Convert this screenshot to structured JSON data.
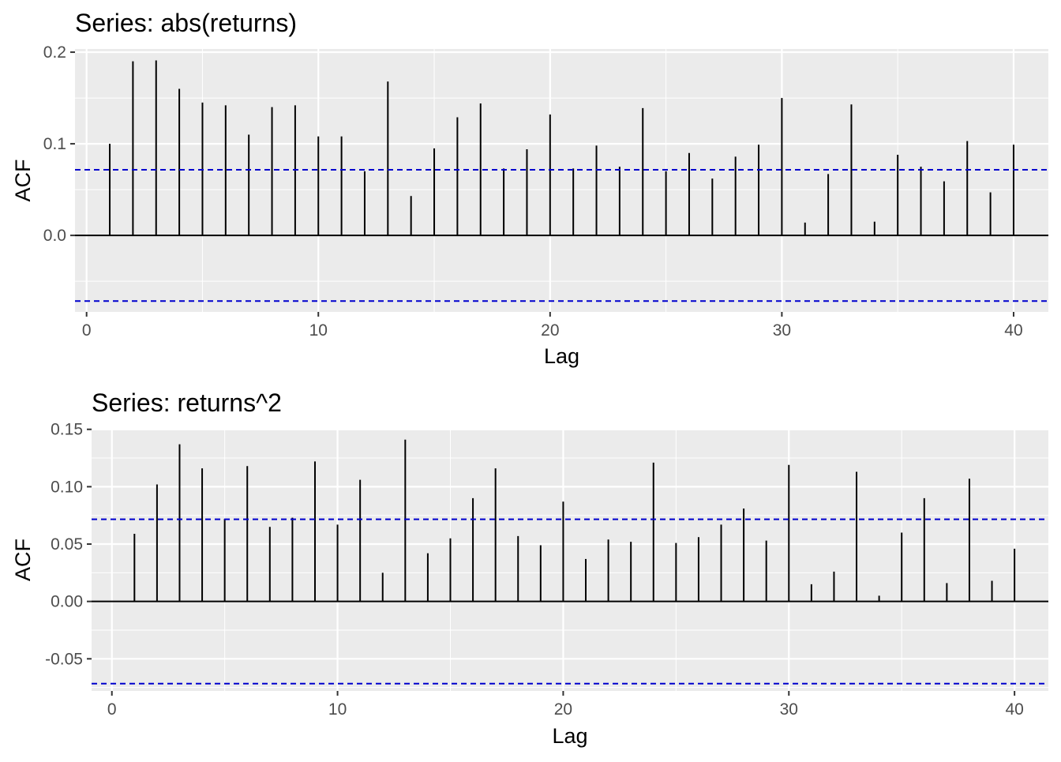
{
  "chart_data": [
    {
      "type": "bar",
      "title": "Series: abs(returns)",
      "xlabel": "Lag",
      "ylabel": "ACF",
      "x": [
        1,
        2,
        3,
        4,
        5,
        6,
        7,
        8,
        9,
        10,
        11,
        12,
        13,
        14,
        15,
        16,
        17,
        18,
        19,
        20,
        21,
        22,
        23,
        24,
        25,
        26,
        27,
        28,
        29,
        30,
        31,
        32,
        33,
        34,
        35,
        36,
        37,
        38,
        39,
        40
      ],
      "values": [
        0.1,
        0.19,
        0.191,
        0.16,
        0.145,
        0.142,
        0.11,
        0.14,
        0.142,
        0.108,
        0.108,
        0.07,
        0.168,
        0.043,
        0.095,
        0.129,
        0.144,
        0.073,
        0.094,
        0.132,
        0.073,
        0.098,
        0.075,
        0.139,
        0.07,
        0.09,
        0.062,
        0.086,
        0.099,
        0.15,
        0.014,
        0.067,
        0.143,
        0.015,
        0.088,
        0.075,
        0.059,
        0.103,
        0.047,
        0.099
      ],
      "confidence_bounds": [
        0.0716,
        -0.0716
      ],
      "xlim": [
        -0.5,
        41.5
      ],
      "ylim": [
        -0.0835,
        0.2035
      ],
      "x_ticks": [
        0,
        10,
        20,
        30,
        40
      ],
      "x_tick_labels": [
        "0",
        "10",
        "20",
        "30",
        "40"
      ],
      "y_ticks": [
        0.0,
        0.1,
        0.2
      ],
      "y_tick_labels": [
        "0.0",
        "0.1",
        "0.2"
      ],
      "grid": true,
      "bar_color": "#000000",
      "bound_color": "#0000cd",
      "panel_color": "#ebebeb",
      "grid_color": "#ffffff"
    },
    {
      "type": "bar",
      "title": "Series: returns^2",
      "xlabel": "Lag",
      "ylabel": "ACF",
      "x": [
        1,
        2,
        3,
        4,
        5,
        6,
        7,
        8,
        9,
        10,
        11,
        12,
        13,
        14,
        15,
        16,
        17,
        18,
        19,
        20,
        21,
        22,
        23,
        24,
        25,
        26,
        27,
        28,
        29,
        30,
        31,
        32,
        33,
        34,
        35,
        36,
        37,
        38,
        39,
        40
      ],
      "values": [
        0.059,
        0.102,
        0.137,
        0.116,
        0.072,
        0.118,
        0.065,
        0.073,
        0.122,
        0.067,
        0.106,
        0.025,
        0.141,
        0.042,
        0.055,
        0.09,
        0.116,
        0.057,
        0.049,
        0.087,
        0.037,
        0.054,
        0.052,
        0.121,
        0.051,
        0.056,
        0.067,
        0.081,
        0.053,
        0.119,
        0.015,
        0.026,
        0.113,
        0.005,
        0.06,
        0.09,
        0.016,
        0.107,
        0.018,
        0.046
      ],
      "confidence_bounds": [
        0.0716,
        -0.0716
      ],
      "xlim": [
        -0.9,
        41.5
      ],
      "ylim": [
        -0.078,
        0.1505
      ],
      "x_ticks": [
        0,
        10,
        20,
        30,
        40
      ],
      "x_tick_labels": [
        "0",
        "10",
        "20",
        "30",
        "40"
      ],
      "y_ticks": [
        -0.05,
        0.0,
        0.05,
        0.1,
        0.15
      ],
      "y_tick_labels": [
        "-0.05",
        "0.00",
        "0.05",
        "0.10",
        "0.15"
      ],
      "grid": true,
      "bar_color": "#000000",
      "bound_color": "#0000cd",
      "panel_color": "#ebebeb",
      "grid_color": "#ffffff"
    }
  ]
}
